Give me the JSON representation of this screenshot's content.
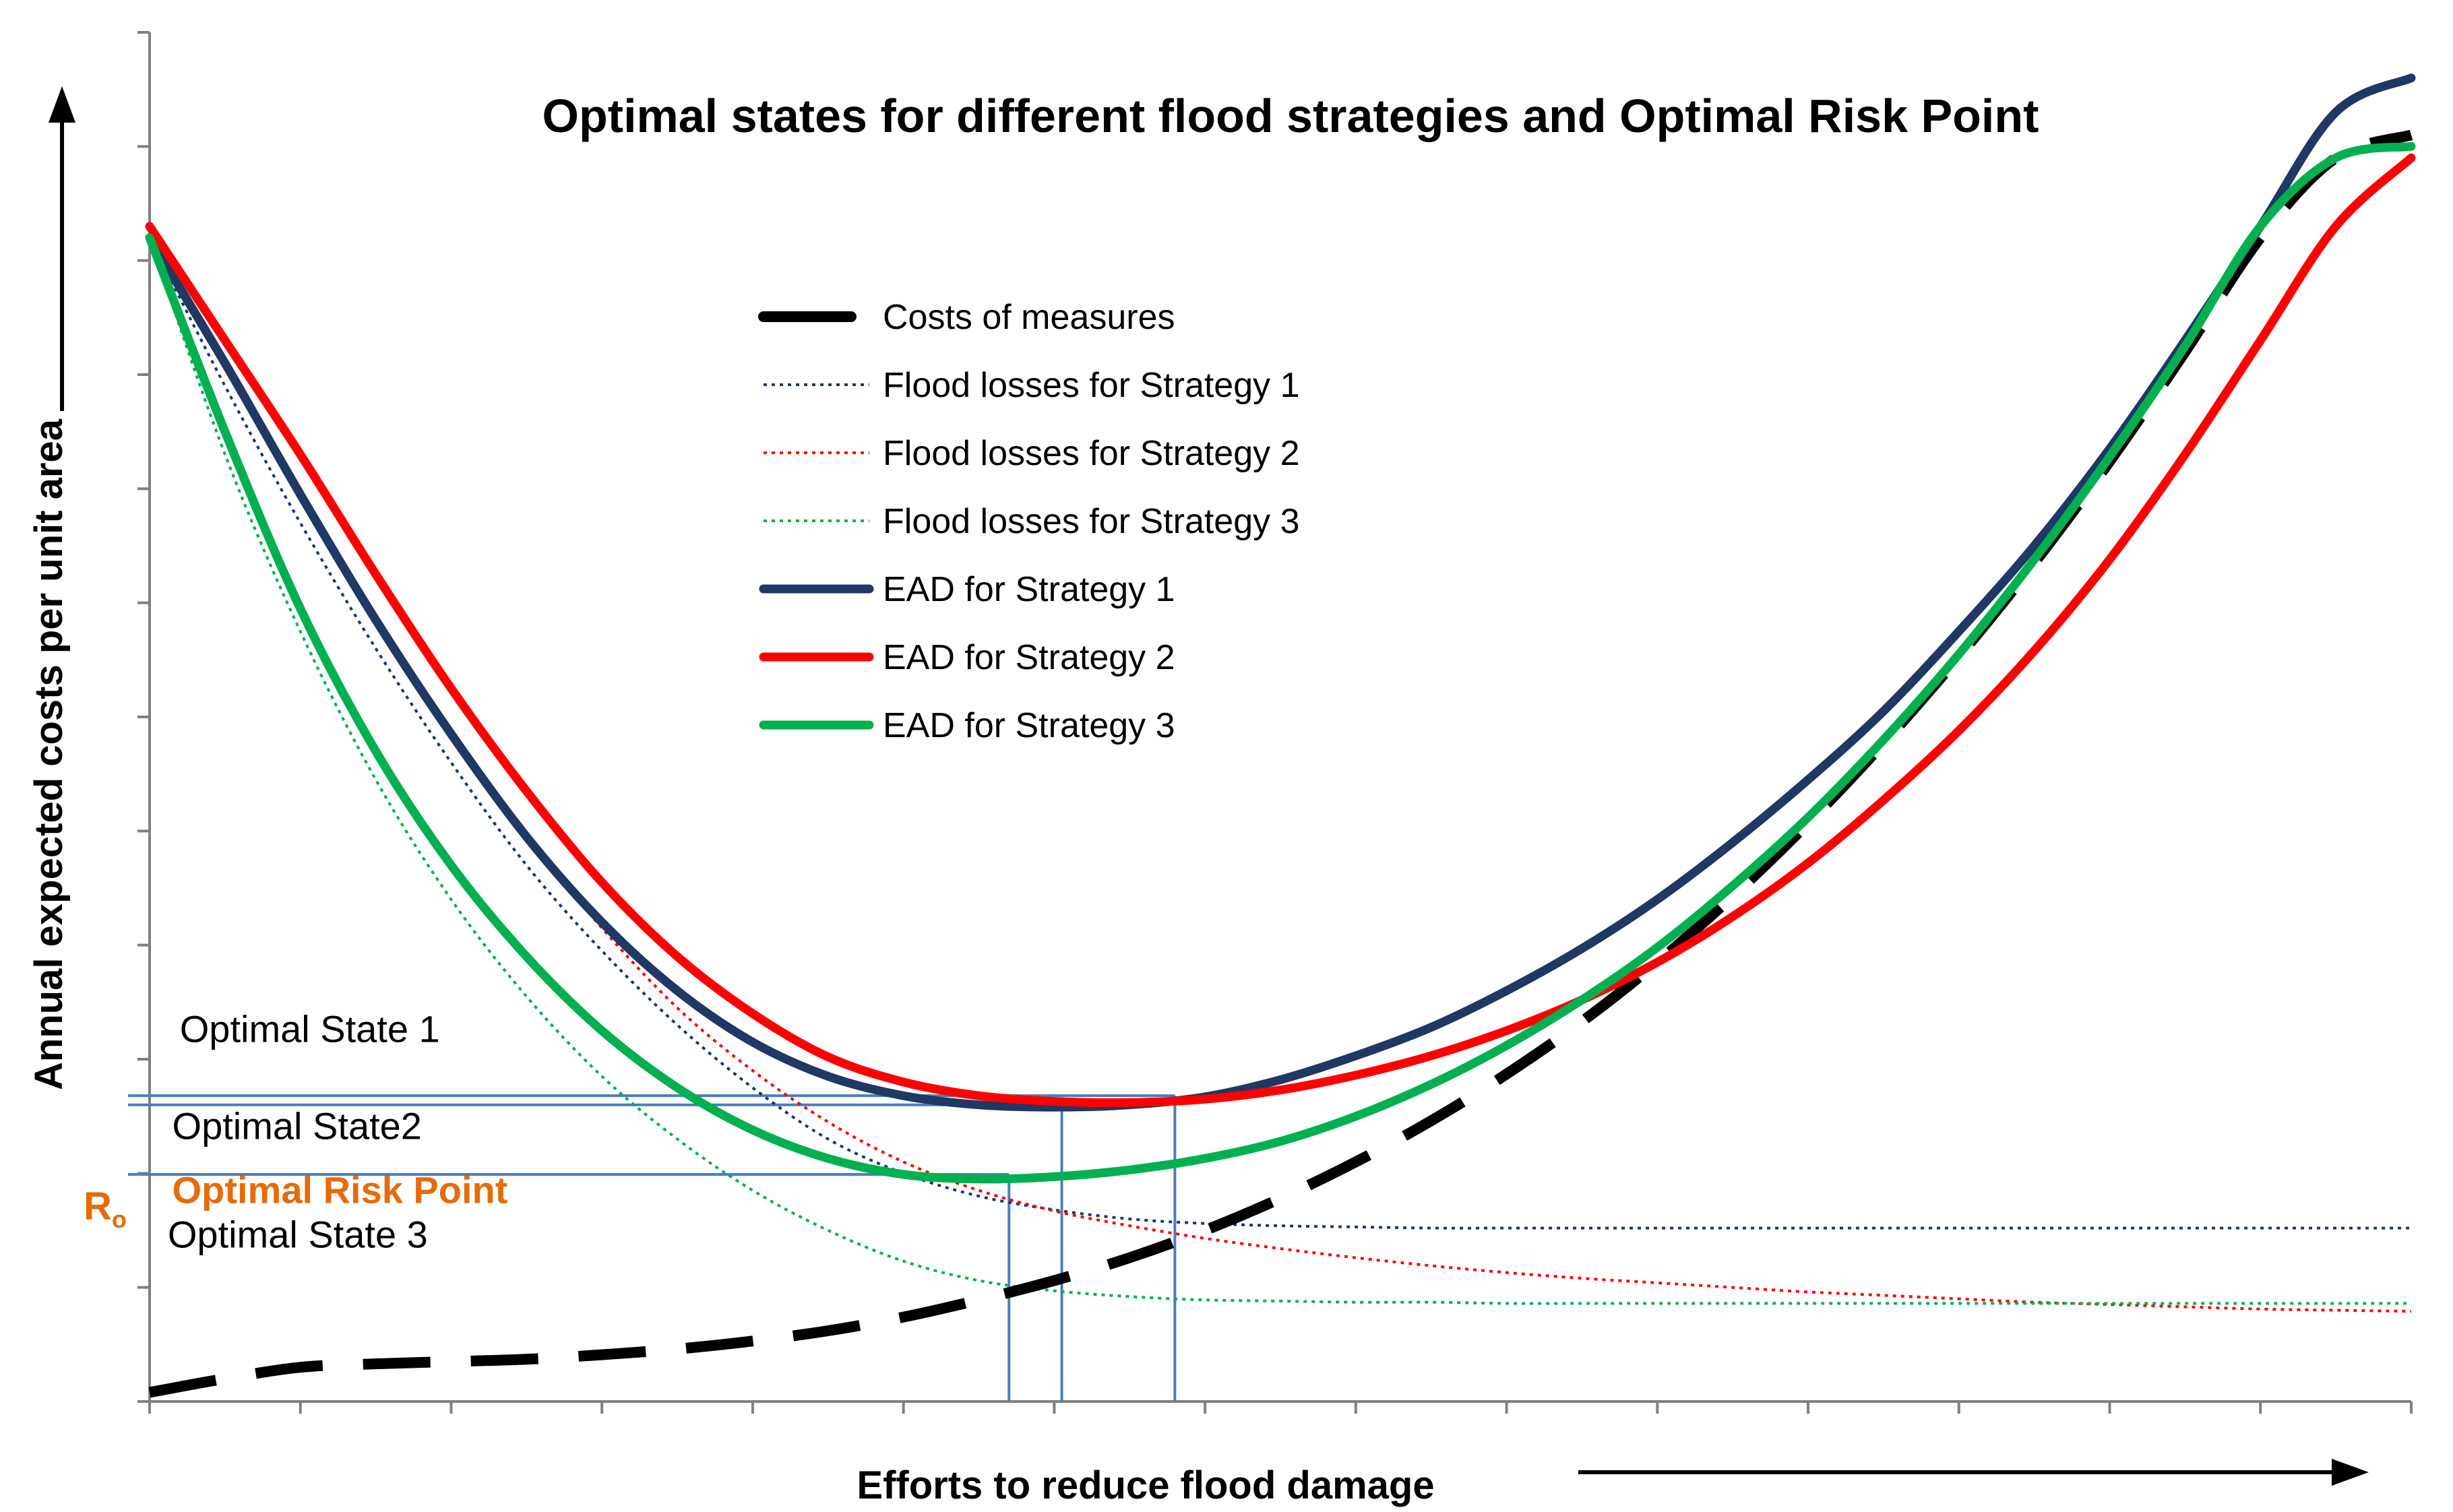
{
  "chart_data": {
    "type": "line",
    "title": "Optimal states for different flood strategies and Optimal Risk Point",
    "xlabel": "Efforts to reduce flood damage",
    "ylabel": "Annual expected costs per unit area",
    "xlim": [
      0,
      15
    ],
    "ylim": [
      0,
      12
    ],
    "grid": false,
    "legend_position": "top-center",
    "x_tick_count": 16,
    "y_tick_count": 13,
    "x": [
      0,
      0.5,
      1,
      1.5,
      2,
      2.5,
      3,
      3.5,
      4,
      4.5,
      5,
      5.5,
      6,
      6.5,
      7,
      7.5,
      8,
      8.5,
      9,
      9.5,
      10,
      10.5,
      11,
      11.5,
      12,
      12.5,
      13,
      13.5,
      14,
      14.5,
      15
    ],
    "series": [
      {
        "name": "Costs of measures",
        "style": "dashed-thick",
        "color": "#000000",
        "values": [
          0.08,
          0.2,
          0.3,
          0.33,
          0.35,
          0.37,
          0.41,
          0.46,
          0.53,
          0.62,
          0.74,
          0.89,
          1.06,
          1.26,
          1.5,
          1.78,
          2.1,
          2.46,
          2.87,
          3.33,
          3.85,
          4.43,
          5.07,
          5.77,
          6.53,
          7.35,
          8.24,
          9.2,
          10.2,
          10.9,
          11.1
        ]
      },
      {
        "name": "Flood losses for Strategy 1",
        "style": "dotted",
        "color": "#1f3864",
        "values": [
          10.2,
          8.9,
          7.7,
          6.6,
          5.6,
          4.7,
          3.95,
          3.3,
          2.75,
          2.3,
          2.0,
          1.8,
          1.68,
          1.6,
          1.56,
          1.54,
          1.53,
          1.52,
          1.52,
          1.52,
          1.52,
          1.52,
          1.52,
          1.52,
          1.52,
          1.52,
          1.52,
          1.52,
          1.52,
          1.52,
          1.52
        ]
      },
      {
        "name": "Flood losses for Strategy 2",
        "style": "dotted",
        "color": "#ff0000",
        "values": [
          10.3,
          9.1,
          7.95,
          6.85,
          5.85,
          4.95,
          4.15,
          3.45,
          2.9,
          2.45,
          2.1,
          1.85,
          1.67,
          1.54,
          1.43,
          1.34,
          1.26,
          1.19,
          1.13,
          1.08,
          1.04,
          1.0,
          0.96,
          0.93,
          0.9,
          0.87,
          0.85,
          0.83,
          0.81,
          0.8,
          0.79
        ]
      },
      {
        "name": "Flood losses for Strategy 3",
        "style": "dotted",
        "color": "#00b050",
        "values": [
          10.2,
          8.3,
          6.75,
          5.45,
          4.4,
          3.55,
          2.85,
          2.3,
          1.85,
          1.5,
          1.23,
          1.06,
          0.97,
          0.92,
          0.89,
          0.88,
          0.87,
          0.87,
          0.86,
          0.86,
          0.86,
          0.86,
          0.86,
          0.86,
          0.86,
          0.86,
          0.86,
          0.86,
          0.86,
          0.86,
          0.86
        ]
      },
      {
        "name": "EAD for Strategy 1",
        "style": "solid-thick",
        "color": "#1f3864",
        "values": [
          10.2,
          9.1,
          7.95,
          6.85,
          5.85,
          4.95,
          4.2,
          3.6,
          3.15,
          2.85,
          2.68,
          2.6,
          2.58,
          2.6,
          2.67,
          2.82,
          3.03,
          3.28,
          3.6,
          3.97,
          4.4,
          4.9,
          5.45,
          6.05,
          6.75,
          7.5,
          8.35,
          9.3,
          10.3,
          11.3,
          11.6
        ]
      },
      {
        "name": "EAD for Strategy 2",
        "style": "solid-thick",
        "color": "#ff0000",
        "values": [
          10.3,
          9.3,
          8.3,
          7.25,
          6.25,
          5.35,
          4.55,
          3.9,
          3.4,
          3.02,
          2.8,
          2.68,
          2.63,
          2.62,
          2.65,
          2.73,
          2.86,
          3.03,
          3.25,
          3.52,
          3.85,
          4.25,
          4.72,
          5.27,
          5.88,
          6.58,
          7.38,
          8.3,
          9.3,
          10.3,
          10.9
        ]
      },
      {
        "name": "EAD for Strategy 3",
        "style": "solid-thick",
        "color": "#00b050",
        "values": [
          10.2,
          8.5,
          6.95,
          5.7,
          4.7,
          3.9,
          3.25,
          2.75,
          2.38,
          2.13,
          1.99,
          1.95,
          1.97,
          2.03,
          2.13,
          2.28,
          2.5,
          2.78,
          3.12,
          3.52,
          3.98,
          4.52,
          5.12,
          5.8,
          6.55,
          7.38,
          8.28,
          9.25,
          10.3,
          10.9,
          11.0
        ]
      }
    ],
    "reference_lines": [
      {
        "name": "Optimal State 1",
        "x": 6.05,
        "y": 2.6
      },
      {
        "name": "Optimal State 2",
        "x": 6.8,
        "y": 2.68
      },
      {
        "name": "Optimal State 3",
        "x": 5.7,
        "y": 1.99
      }
    ],
    "annotations": [
      {
        "text": "Optimal State 1",
        "x": 0.2,
        "y": 3.15
      },
      {
        "text": "Optimal State2",
        "x": 0.15,
        "y": 2.3
      },
      {
        "text": "Optimal Risk Point",
        "x": 0.15,
        "y": 1.74,
        "color": "#e46c0a"
      },
      {
        "text": "Optimal State 3",
        "x": 0.12,
        "y": 1.35
      }
    ],
    "optimal_risk_point": {
      "label": "R",
      "subscript": "o",
      "color": "#e46c0a"
    }
  }
}
